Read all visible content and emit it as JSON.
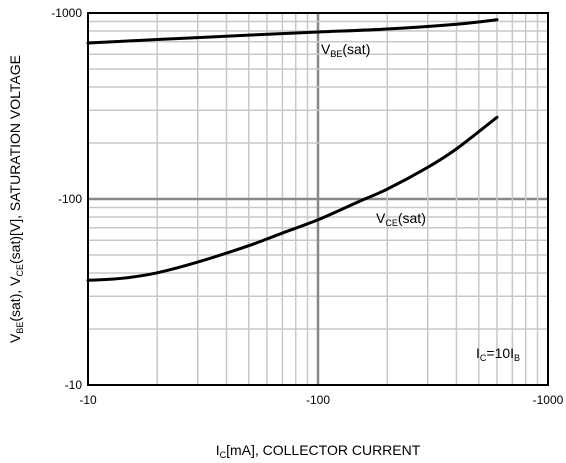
{
  "chart_data": {
    "type": "line",
    "x_scale": "log",
    "y_scale": "log",
    "xlim": [
      -10,
      -1000
    ],
    "ylim": [
      -10,
      -1000
    ],
    "grid": true,
    "x_ticks": [
      "-10",
      "-100",
      "-1000"
    ],
    "y_ticks": [
      "-1000",
      "-100",
      "-10"
    ],
    "xlabel": {
      "main": "I",
      "sub": "C",
      "rest": "[mA], COLLECTOR CURRENT"
    },
    "ylabel": {
      "p1": "V",
      "s1": "BE",
      "p2": "(sat), V",
      "s2": "CE",
      "p3": "(sat)[V], SATURATION VOLTAGE"
    },
    "condition": {
      "p1": "I",
      "s1": "C",
      "p2": "=10I",
      "s2": "B"
    },
    "series": [
      {
        "name": "VBE(sat)",
        "label": {
          "p1": "V",
          "s1": "BE",
          "p2": "(sat)"
        },
        "color": "#000000",
        "x": [
          -10,
          -20,
          -50,
          -100,
          -200,
          -400,
          -600
        ],
        "y": [
          -690,
          -720,
          -760,
          -790,
          -820,
          -870,
          -920
        ]
      },
      {
        "name": "VCE(sat)",
        "label": {
          "p1": "V",
          "s1": "CE",
          "p2": "(sat)"
        },
        "color": "#000000",
        "x": [
          -10,
          -12,
          -15,
          -20,
          -30,
          -50,
          -70,
          -100,
          -150,
          -200,
          -300,
          -400,
          -600
        ],
        "y": [
          -36.6,
          -36.9,
          -37.8,
          -40.1,
          -45.8,
          -56.1,
          -65.6,
          -77.3,
          -96.7,
          -113,
          -148,
          -186,
          -275
        ]
      }
    ]
  }
}
